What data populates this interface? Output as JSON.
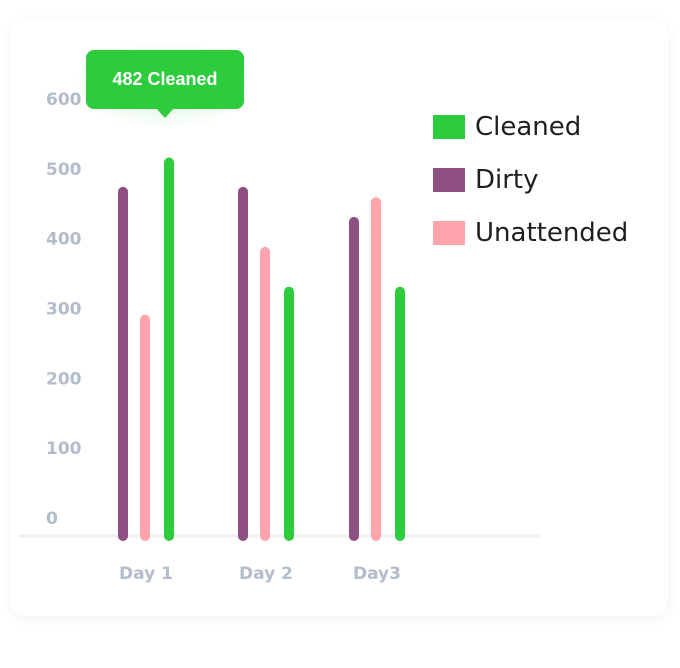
{
  "chart_data": {
    "type": "bar",
    "title": "",
    "xlabel": "",
    "ylabel": "",
    "categories": [
      "Day 1",
      "Day 2",
      "Day3"
    ],
    "y_ticks": [
      "0",
      "100",
      "200",
      "300",
      "400",
      "500",
      "600"
    ],
    "ylim": [
      0,
      600
    ],
    "series": [
      {
        "name": "Dirty",
        "color": "#8e4f81",
        "values": [
          500,
          500,
          457
        ]
      },
      {
        "name": "Unattended",
        "color": "#ffa3ad",
        "values": [
          317,
          414,
          485
        ]
      },
      {
        "name": "Cleaned",
        "color": "#2ccc3d",
        "values": [
          542,
          357,
          357
        ]
      }
    ],
    "legend": {
      "placement": "right",
      "items": [
        {
          "label": "Cleaned",
          "color": "#2ccc3d"
        },
        {
          "label": "Dirty",
          "color": "#8e4f81"
        },
        {
          "label": "Unattended",
          "color": "#ffa3ad"
        }
      ]
    },
    "tooltip": {
      "text": "482 Cleaned",
      "color": "#2ccc3d"
    },
    "grid": false
  }
}
